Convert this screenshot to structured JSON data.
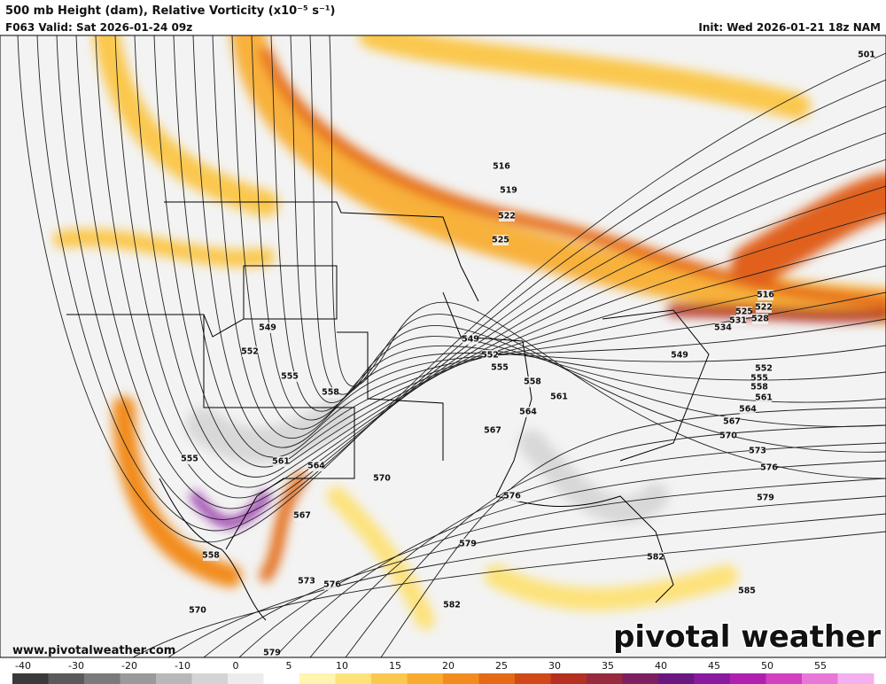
{
  "header": {
    "title": "500 mb Height (dam), Relative Vorticity (x10⁻⁵ s⁻¹)",
    "valid": "F063 Valid: Sat 2026-01-24 09z",
    "init": "Init: Wed 2026-01-21 18z NAM"
  },
  "map": {
    "contour_labels": [
      501,
      516,
      519,
      522,
      525,
      516,
      522,
      525,
      531,
      528,
      534,
      549,
      549,
      552,
      552,
      549,
      552,
      555,
      555,
      555,
      558,
      558,
      558,
      561,
      561,
      564,
      564,
      567,
      570,
      567,
      573,
      576,
      579,
      555,
      561,
      564,
      570,
      567,
      576,
      558,
      579,
      582,
      573,
      576,
      585,
      582,
      570,
      579
    ]
  },
  "footer": {
    "website": "www.pivotalweather.com",
    "logo": "pivotal weather"
  },
  "colorbar": {
    "ticks": [
      -40,
      -30,
      -20,
      -10,
      0,
      5,
      10,
      15,
      20,
      25,
      30,
      35,
      40,
      45,
      50,
      55
    ],
    "colors": [
      "#3a3a3a",
      "#5a5a5a",
      "#7a7a7a",
      "#9a9a9a",
      "#b8b8b8",
      "#d4d4d4",
      "#ececec",
      "#ffffff",
      "#fff4b0",
      "#fde27a",
      "#fbc84e",
      "#f8ab2e",
      "#f28c1e",
      "#e46a16",
      "#cf4a18",
      "#b43020",
      "#962a3e",
      "#7c2060",
      "#6a1880",
      "#8a1aa0",
      "#b020b0",
      "#d040c0",
      "#e878d8",
      "#f4b0ec"
    ]
  }
}
